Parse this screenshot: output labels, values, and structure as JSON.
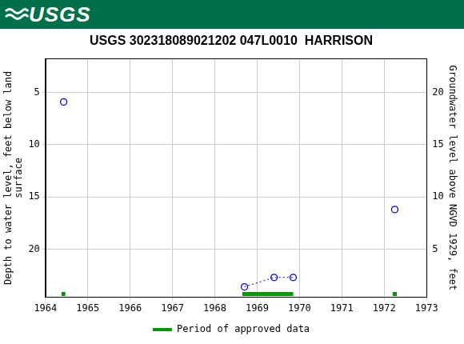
{
  "header": {
    "logo": "USGS"
  },
  "chart_data": {
    "type": "scatter",
    "title": "USGS 302318089021202 047L0010  HARRISON",
    "y_label": [
      "Depth to water level, feet below land",
      "surface"
    ],
    "y2_label": "Groundwater level above NGVD 1929, feet",
    "xlim": [
      1964,
      1973
    ],
    "xticks": [
      1964,
      1965,
      1966,
      1967,
      1968,
      1969,
      1970,
      1971,
      1972,
      1973
    ],
    "ylim": [
      24.6,
      1.75
    ],
    "yticks": [
      5,
      10,
      15,
      20
    ],
    "y2lim": [
      0.4,
      23.25
    ],
    "y2ticks": [
      5,
      10,
      15,
      20
    ],
    "grid": true,
    "legend": "bottom",
    "series": [
      {
        "x": [
          1964.43
        ],
        "values": [
          5.9
        ],
        "color": "#0000cc",
        "marker": "open_circle",
        "line_style": "dotted"
      },
      {
        "x": [
          1968.7,
          1969.4,
          1969.85
        ],
        "values": [
          23.6,
          22.7,
          22.7
        ],
        "color": "#0000cc",
        "marker": "open_circle",
        "line_style": "dotted"
      },
      {
        "x": [
          1972.25
        ],
        "values": [
          16.2
        ],
        "color": "#0000cc",
        "marker": "open_circle",
        "line_style": "dotted"
      }
    ],
    "approved_periods": {
      "name": "Period of approved data",
      "color": "#009900",
      "ranges": [
        [
          1964.38,
          1964.47
        ],
        [
          1968.65,
          1969.85
        ],
        [
          1972.2,
          1972.3
        ]
      ]
    }
  }
}
